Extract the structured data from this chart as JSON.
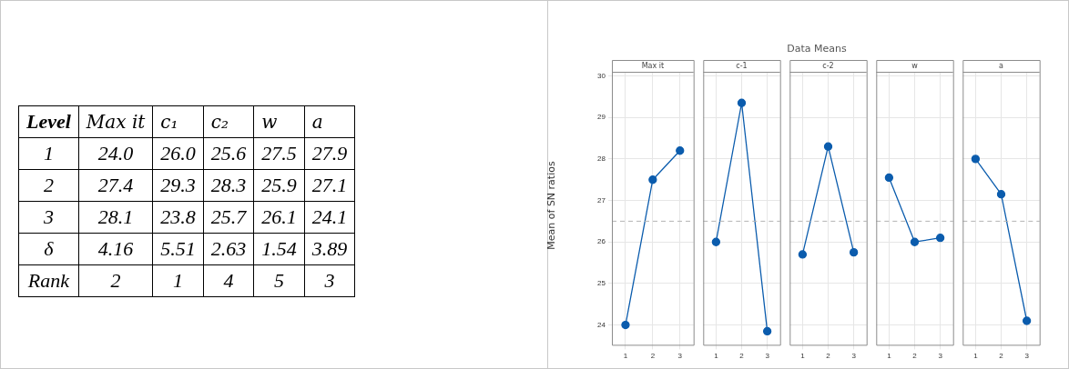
{
  "chart_data": [
    {
      "type": "other",
      "ylabel": "Level",
      "categories": [
        "Max it",
        "c₁",
        "c₂",
        "w",
        "a"
      ],
      "y_categories": [
        "1",
        "2",
        "3",
        "δ",
        "Rank"
      ],
      "cell_labels": [
        [
          "24.0",
          "26.0",
          "25.6",
          "27.5",
          "27.9"
        ],
        [
          "27.4",
          "29.3",
          "28.3",
          "25.9",
          "27.1"
        ],
        [
          "28.1",
          "23.8",
          "25.7",
          "26.1",
          "24.1"
        ],
        [
          "4.16",
          "5.51",
          "2.63",
          "1.54",
          "3.89"
        ],
        [
          "2",
          "1",
          "4",
          "5",
          "3"
        ]
      ]
    },
    {
      "type": "line",
      "title": "Max it",
      "annotations": [
        "Data Means"
      ],
      "ylabel": "Mean of SN ratios",
      "categories": [
        "1",
        "2",
        "3"
      ],
      "series": [
        {
          "color": "#0b5cad",
          "values": [
            24.0,
            27.5,
            28.2
          ]
        }
      ],
      "ylim": [
        23.5,
        30.1
      ],
      "yticks": [
        24,
        25,
        26,
        27,
        28,
        29,
        30
      ],
      "grid": true,
      "marker": "circle",
      "ref_lines": [
        {
          "axis": "y",
          "value": 26.5,
          "color": "#b4b4b4",
          "line_style": "dashed"
        }
      ]
    },
    {
      "type": "line",
      "title": "c-1",
      "categories": [
        "1",
        "2",
        "3"
      ],
      "series": [
        {
          "color": "#0b5cad",
          "values": [
            26.0,
            29.35,
            23.85
          ]
        }
      ],
      "ylim": [
        23.5,
        30.1
      ],
      "yticks": [
        24,
        25,
        26,
        27,
        28,
        29,
        30
      ],
      "tick_labels": "x",
      "grid": true,
      "marker": "circle",
      "ref_lines": [
        {
          "axis": "y",
          "value": 26.5,
          "color": "#b4b4b4",
          "line_style": "dashed"
        }
      ]
    },
    {
      "type": "line",
      "title": "c-2",
      "categories": [
        "1",
        "2",
        "3"
      ],
      "series": [
        {
          "color": "#0b5cad",
          "values": [
            25.7,
            28.3,
            25.75
          ]
        }
      ],
      "ylim": [
        23.5,
        30.1
      ],
      "yticks": [
        24,
        25,
        26,
        27,
        28,
        29,
        30
      ],
      "tick_labels": "x",
      "grid": true,
      "marker": "circle",
      "ref_lines": [
        {
          "axis": "y",
          "value": 26.5,
          "color": "#b4b4b4",
          "line_style": "dashed"
        }
      ]
    },
    {
      "type": "line",
      "title": "w",
      "categories": [
        "1",
        "2",
        "3"
      ],
      "series": [
        {
          "color": "#0b5cad",
          "values": [
            27.55,
            26.0,
            26.1
          ]
        }
      ],
      "ylim": [
        23.5,
        30.1
      ],
      "yticks": [
        24,
        25,
        26,
        27,
        28,
        29,
        30
      ],
      "tick_labels": "x",
      "grid": true,
      "marker": "circle",
      "ref_lines": [
        {
          "axis": "y",
          "value": 26.5,
          "color": "#b4b4b4",
          "line_style": "dashed"
        }
      ]
    },
    {
      "type": "line",
      "title": "a",
      "categories": [
        "1",
        "2",
        "3"
      ],
      "series": [
        {
          "color": "#0b5cad",
          "values": [
            28.0,
            27.15,
            24.1
          ]
        }
      ],
      "ylim": [
        23.5,
        30.1
      ],
      "yticks": [
        24,
        25,
        26,
        27,
        28,
        29,
        30
      ],
      "tick_labels": "x",
      "grid": true,
      "marker": "circle",
      "ref_lines": [
        {
          "axis": "y",
          "value": 26.5,
          "color": "#b4b4b4",
          "line_style": "dashed"
        }
      ]
    }
  ]
}
